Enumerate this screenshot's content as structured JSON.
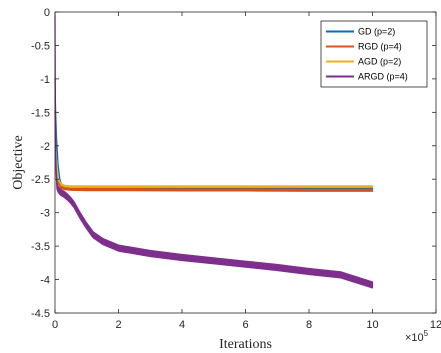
{
  "chart_data": {
    "type": "line",
    "title": "",
    "xlabel": "Iterations",
    "ylabel": "Objective",
    "xlim": [
      0,
      12
    ],
    "ylim": [
      -4.5,
      0
    ],
    "x_exponent_label": "×10",
    "x_exponent_power": "5",
    "xticks": [
      0,
      2,
      4,
      6,
      8,
      10,
      12
    ],
    "xtick_labels": [
      "0",
      "2",
      "4",
      "6",
      "8",
      "10",
      "12"
    ],
    "yticks": [
      0,
      -0.5,
      -1,
      -1.5,
      -2,
      -2.5,
      -3,
      -3.5,
      -4,
      -4.5
    ],
    "ytick_labels": [
      "0",
      "-0.5",
      "-1",
      "-1.5",
      "-2",
      "-2.5",
      "-3",
      "-3.5",
      "-4",
      "-4.5"
    ],
    "grid": false,
    "legend_position": "top-right",
    "series": [
      {
        "name": "GD (p=2)",
        "color": "#0072BD",
        "band": 0.01,
        "x": [
          0,
          0.02,
          0.05,
          0.1,
          0.15,
          0.2,
          0.3,
          0.5,
          1,
          2,
          4,
          6,
          8,
          10
        ],
        "y": [
          -1.0,
          -1.5,
          -1.9,
          -2.3,
          -2.5,
          -2.58,
          -2.62,
          -2.635,
          -2.64,
          -2.64,
          -2.64,
          -2.64,
          -2.64,
          -2.64
        ]
      },
      {
        "name": "RGD (p=4)",
        "color": "#D95319",
        "band": 0.015,
        "x": [
          0,
          0.02,
          0.05,
          0.1,
          0.2,
          0.3,
          0.5,
          1,
          2,
          4,
          6,
          8,
          10
        ],
        "y": [
          -1.5,
          -2.1,
          -2.4,
          -2.55,
          -2.62,
          -2.64,
          -2.65,
          -2.655,
          -2.655,
          -2.66,
          -2.66,
          -2.665,
          -2.665
        ]
      },
      {
        "name": "AGD (p=2)",
        "color": "#EDB120",
        "band": 0.01,
        "x": [
          0,
          0.02,
          0.05,
          0.1,
          0.2,
          0.3,
          0.5,
          1,
          2,
          4,
          6,
          8,
          10
        ],
        "y": [
          -1.3,
          -1.9,
          -2.3,
          -2.5,
          -2.58,
          -2.6,
          -2.61,
          -2.61,
          -2.61,
          -2.61,
          -2.61,
          -2.61,
          -2.61
        ]
      },
      {
        "name": "ARGD (p=4)",
        "color": "#7E2F8E",
        "band": 0.045,
        "x": [
          0,
          0.01,
          0.03,
          0.06,
          0.1,
          0.15,
          0.2,
          0.3,
          0.4,
          0.5,
          0.6,
          0.8,
          1.0,
          1.2,
          1.5,
          2.0,
          3.0,
          4.0,
          5.0,
          6.0,
          7.0,
          8.0,
          9.0,
          10.0
        ],
        "y": [
          -0.1,
          -1.3,
          -2.3,
          -2.6,
          -2.65,
          -2.68,
          -2.7,
          -2.73,
          -2.77,
          -2.82,
          -2.88,
          -3.05,
          -3.2,
          -3.33,
          -3.43,
          -3.53,
          -3.61,
          -3.67,
          -3.72,
          -3.77,
          -3.82,
          -3.88,
          -3.93,
          -4.08
        ]
      }
    ]
  }
}
